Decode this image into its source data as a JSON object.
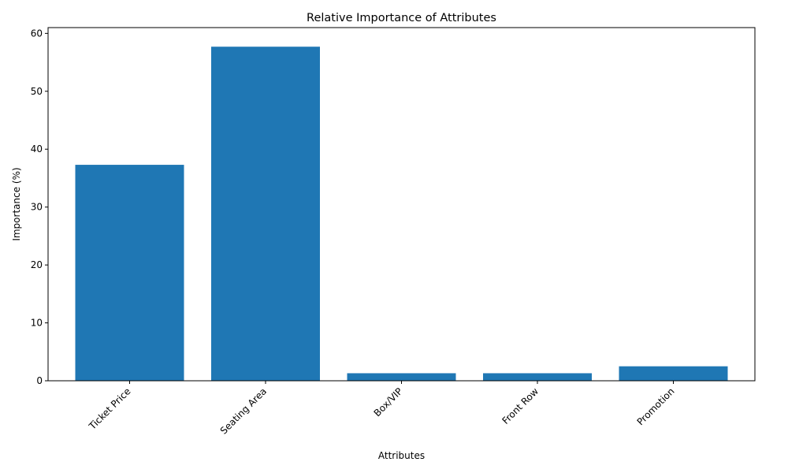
{
  "chart_data": {
    "type": "bar",
    "title": "Relative Importance of Attributes",
    "xlabel": "Attributes",
    "ylabel": "Importance (%)",
    "categories": [
      "Ticket Price",
      "Seating Area",
      "Box/VIP",
      "Front Row",
      "Promotion"
    ],
    "values": [
      37.3,
      57.7,
      1.3,
      1.3,
      2.5
    ],
    "ylim": [
      0,
      61
    ],
    "yticks": [
      0,
      10,
      20,
      30,
      40,
      50,
      60
    ],
    "ytick_labels": [
      "0",
      "10",
      "20",
      "30",
      "40",
      "50",
      "60"
    ],
    "grid": false,
    "legend": "none",
    "colors": {
      "bar": "#1f77b4",
      "axes": "#000000"
    }
  }
}
